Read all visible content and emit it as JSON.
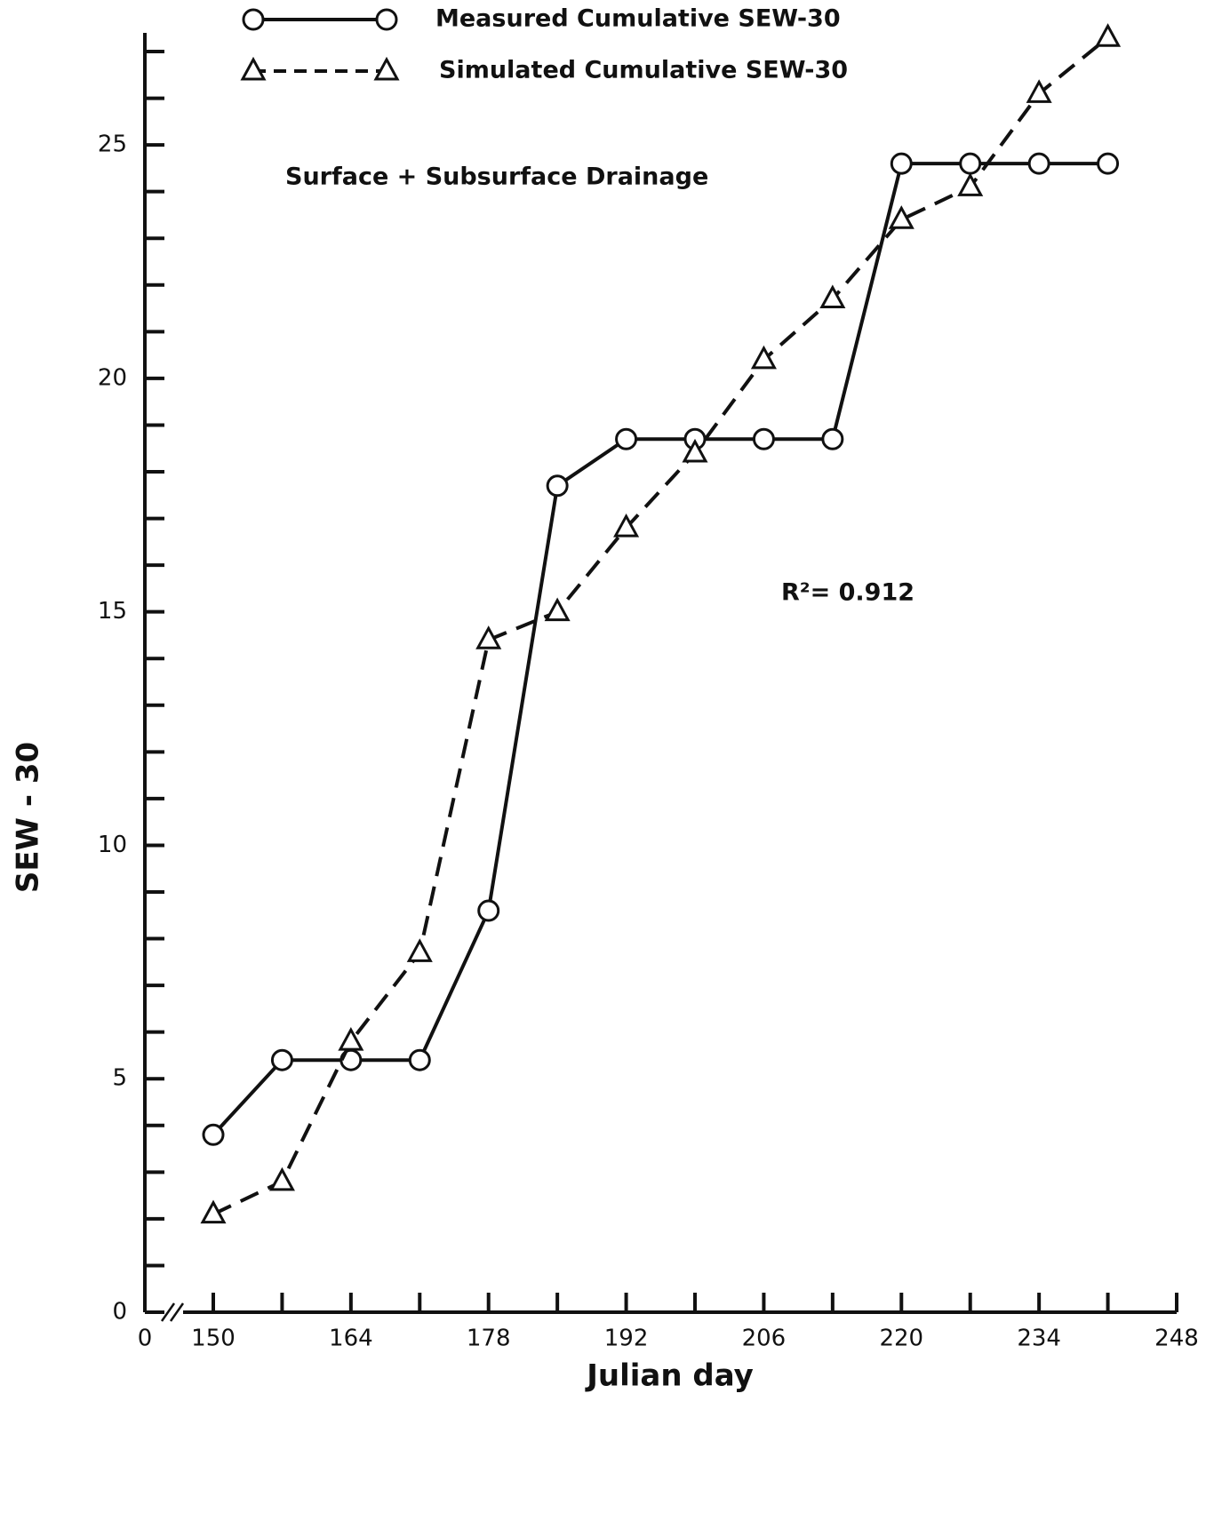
{
  "chart_data": {
    "type": "line",
    "legend_items_title": null,
    "x_label": "Julian day",
    "y_label": "SEW - 30",
    "annotations": [
      "Surface + Subsurface Drainage",
      "R²= 0.912"
    ],
    "x": [
      150,
      157,
      164,
      171,
      178,
      185,
      192,
      199,
      206,
      213,
      220,
      227,
      234,
      241
    ],
    "series": [
      {
        "name": "Measured Cumulative SEW-30",
        "color": "#111111",
        "marker": "circle",
        "dashed": false,
        "values": [
          3.8,
          5.4,
          5.4,
          5.4,
          8.6,
          17.7,
          18.7,
          18.7,
          18.7,
          18.7,
          24.6,
          24.6,
          24.6,
          24.6
        ]
      },
      {
        "name": "Simulated Cumulative SEW-30",
        "color": "#111111",
        "marker": "triangle",
        "dashed": true,
        "values": [
          2.1,
          2.8,
          5.8,
          7.7,
          14.4,
          15.0,
          16.8,
          18.4,
          20.4,
          21.7,
          23.4,
          24.1,
          26.1,
          27.3
        ]
      }
    ],
    "xlim": [
      150,
      248
    ],
    "axis_break": true,
    "xticks": [
      0,
      150,
      164,
      178,
      192,
      206,
      220,
      234,
      248
    ],
    "xminorticks": [
      157,
      171,
      185,
      199,
      213,
      227,
      241
    ],
    "ylim": [
      0,
      27.4
    ],
    "yticks": [
      0,
      5,
      10,
      15,
      20,
      25
    ],
    "yminorticks": [
      1,
      2,
      3,
      4,
      6,
      7,
      8,
      9,
      11,
      12,
      13,
      14,
      16,
      17,
      18,
      19,
      21,
      22,
      23,
      24,
      26,
      27
    ]
  }
}
